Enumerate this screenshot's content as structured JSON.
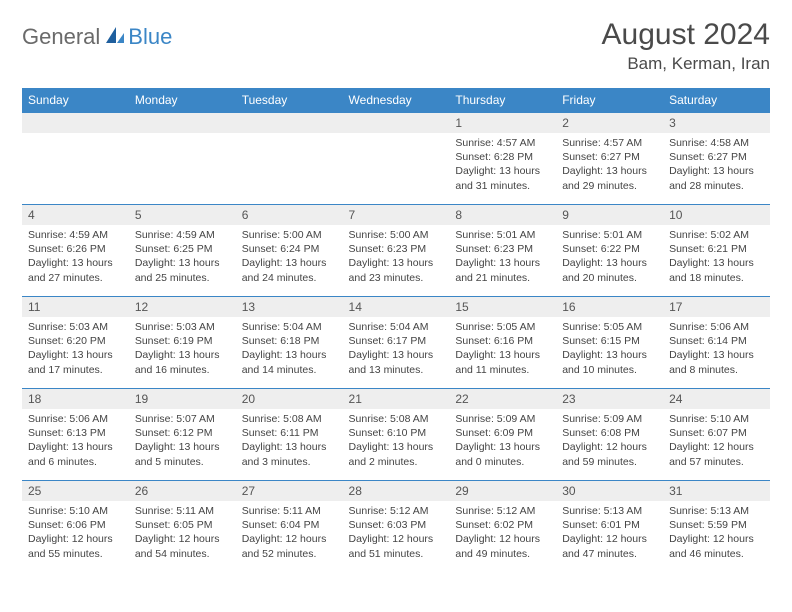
{
  "brand": {
    "part1": "General",
    "part2": "Blue"
  },
  "title": "August 2024",
  "location": "Bam, Kerman, Iran",
  "colors": {
    "header_bg": "#3b86c6",
    "header_text": "#ffffff",
    "daynum_bg": "#eeeeee",
    "text": "#444444",
    "border": "#3b86c6"
  },
  "weekdays": [
    "Sunday",
    "Monday",
    "Tuesday",
    "Wednesday",
    "Thursday",
    "Friday",
    "Saturday"
  ],
  "weeks": [
    [
      null,
      null,
      null,
      null,
      {
        "n": "1",
        "sr": "Sunrise: 4:57 AM",
        "ss": "Sunset: 6:28 PM",
        "dl": "Daylight: 13 hours and 31 minutes."
      },
      {
        "n": "2",
        "sr": "Sunrise: 4:57 AM",
        "ss": "Sunset: 6:27 PM",
        "dl": "Daylight: 13 hours and 29 minutes."
      },
      {
        "n": "3",
        "sr": "Sunrise: 4:58 AM",
        "ss": "Sunset: 6:27 PM",
        "dl": "Daylight: 13 hours and 28 minutes."
      }
    ],
    [
      {
        "n": "4",
        "sr": "Sunrise: 4:59 AM",
        "ss": "Sunset: 6:26 PM",
        "dl": "Daylight: 13 hours and 27 minutes."
      },
      {
        "n": "5",
        "sr": "Sunrise: 4:59 AM",
        "ss": "Sunset: 6:25 PM",
        "dl": "Daylight: 13 hours and 25 minutes."
      },
      {
        "n": "6",
        "sr": "Sunrise: 5:00 AM",
        "ss": "Sunset: 6:24 PM",
        "dl": "Daylight: 13 hours and 24 minutes."
      },
      {
        "n": "7",
        "sr": "Sunrise: 5:00 AM",
        "ss": "Sunset: 6:23 PM",
        "dl": "Daylight: 13 hours and 23 minutes."
      },
      {
        "n": "8",
        "sr": "Sunrise: 5:01 AM",
        "ss": "Sunset: 6:23 PM",
        "dl": "Daylight: 13 hours and 21 minutes."
      },
      {
        "n": "9",
        "sr": "Sunrise: 5:01 AM",
        "ss": "Sunset: 6:22 PM",
        "dl": "Daylight: 13 hours and 20 minutes."
      },
      {
        "n": "10",
        "sr": "Sunrise: 5:02 AM",
        "ss": "Sunset: 6:21 PM",
        "dl": "Daylight: 13 hours and 18 minutes."
      }
    ],
    [
      {
        "n": "11",
        "sr": "Sunrise: 5:03 AM",
        "ss": "Sunset: 6:20 PM",
        "dl": "Daylight: 13 hours and 17 minutes."
      },
      {
        "n": "12",
        "sr": "Sunrise: 5:03 AM",
        "ss": "Sunset: 6:19 PM",
        "dl": "Daylight: 13 hours and 16 minutes."
      },
      {
        "n": "13",
        "sr": "Sunrise: 5:04 AM",
        "ss": "Sunset: 6:18 PM",
        "dl": "Daylight: 13 hours and 14 minutes."
      },
      {
        "n": "14",
        "sr": "Sunrise: 5:04 AM",
        "ss": "Sunset: 6:17 PM",
        "dl": "Daylight: 13 hours and 13 minutes."
      },
      {
        "n": "15",
        "sr": "Sunrise: 5:05 AM",
        "ss": "Sunset: 6:16 PM",
        "dl": "Daylight: 13 hours and 11 minutes."
      },
      {
        "n": "16",
        "sr": "Sunrise: 5:05 AM",
        "ss": "Sunset: 6:15 PM",
        "dl": "Daylight: 13 hours and 10 minutes."
      },
      {
        "n": "17",
        "sr": "Sunrise: 5:06 AM",
        "ss": "Sunset: 6:14 PM",
        "dl": "Daylight: 13 hours and 8 minutes."
      }
    ],
    [
      {
        "n": "18",
        "sr": "Sunrise: 5:06 AM",
        "ss": "Sunset: 6:13 PM",
        "dl": "Daylight: 13 hours and 6 minutes."
      },
      {
        "n": "19",
        "sr": "Sunrise: 5:07 AM",
        "ss": "Sunset: 6:12 PM",
        "dl": "Daylight: 13 hours and 5 minutes."
      },
      {
        "n": "20",
        "sr": "Sunrise: 5:08 AM",
        "ss": "Sunset: 6:11 PM",
        "dl": "Daylight: 13 hours and 3 minutes."
      },
      {
        "n": "21",
        "sr": "Sunrise: 5:08 AM",
        "ss": "Sunset: 6:10 PM",
        "dl": "Daylight: 13 hours and 2 minutes."
      },
      {
        "n": "22",
        "sr": "Sunrise: 5:09 AM",
        "ss": "Sunset: 6:09 PM",
        "dl": "Daylight: 13 hours and 0 minutes."
      },
      {
        "n": "23",
        "sr": "Sunrise: 5:09 AM",
        "ss": "Sunset: 6:08 PM",
        "dl": "Daylight: 12 hours and 59 minutes."
      },
      {
        "n": "24",
        "sr": "Sunrise: 5:10 AM",
        "ss": "Sunset: 6:07 PM",
        "dl": "Daylight: 12 hours and 57 minutes."
      }
    ],
    [
      {
        "n": "25",
        "sr": "Sunrise: 5:10 AM",
        "ss": "Sunset: 6:06 PM",
        "dl": "Daylight: 12 hours and 55 minutes."
      },
      {
        "n": "26",
        "sr": "Sunrise: 5:11 AM",
        "ss": "Sunset: 6:05 PM",
        "dl": "Daylight: 12 hours and 54 minutes."
      },
      {
        "n": "27",
        "sr": "Sunrise: 5:11 AM",
        "ss": "Sunset: 6:04 PM",
        "dl": "Daylight: 12 hours and 52 minutes."
      },
      {
        "n": "28",
        "sr": "Sunrise: 5:12 AM",
        "ss": "Sunset: 6:03 PM",
        "dl": "Daylight: 12 hours and 51 minutes."
      },
      {
        "n": "29",
        "sr": "Sunrise: 5:12 AM",
        "ss": "Sunset: 6:02 PM",
        "dl": "Daylight: 12 hours and 49 minutes."
      },
      {
        "n": "30",
        "sr": "Sunrise: 5:13 AM",
        "ss": "Sunset: 6:01 PM",
        "dl": "Daylight: 12 hours and 47 minutes."
      },
      {
        "n": "31",
        "sr": "Sunrise: 5:13 AM",
        "ss": "Sunset: 5:59 PM",
        "dl": "Daylight: 12 hours and 46 minutes."
      }
    ]
  ]
}
